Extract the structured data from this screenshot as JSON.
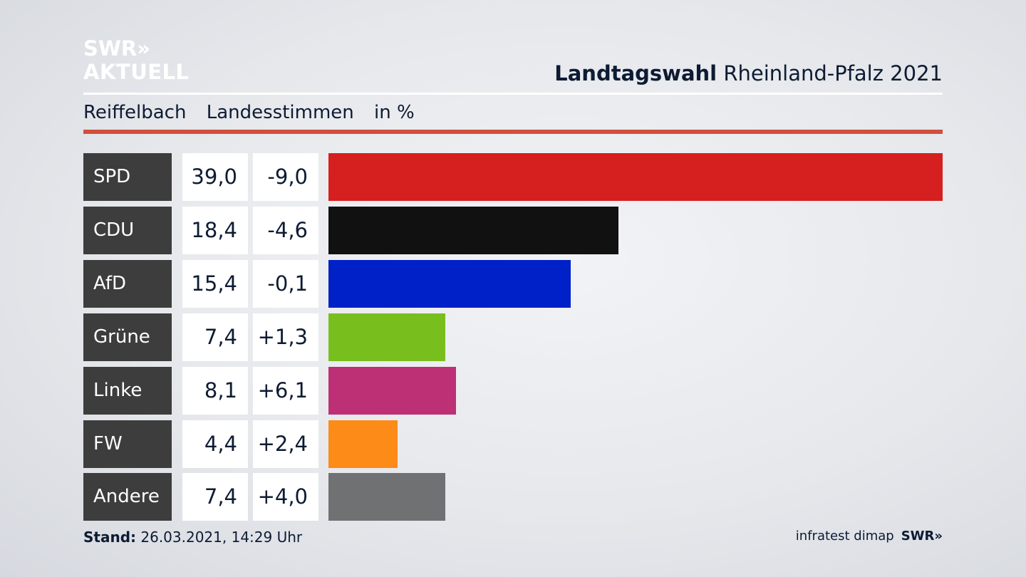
{
  "logo": {
    "line1": "SWR»",
    "line2": "AKTUELL"
  },
  "header": {
    "title_bold": "Landtagswahl",
    "title_rest": " Rheinland-Pfalz 2021"
  },
  "subheader": {
    "place": "Reiffelbach",
    "vote_type": "Landesstimmen",
    "unit": "in %"
  },
  "chart_data": {
    "type": "bar",
    "orientation": "horizontal",
    "categories": [
      "SPD",
      "CDU",
      "AfD",
      "Grüne",
      "Linke",
      "FW",
      "Andere"
    ],
    "values": [
      39.0,
      18.4,
      15.4,
      7.4,
      8.1,
      4.4,
      7.4
    ],
    "value_labels": [
      "39,0",
      "18,4",
      "15,4",
      "7,4",
      "8,1",
      "4,4",
      "7,4"
    ],
    "change_labels": [
      "-9,0",
      "-4,6",
      "-0,1",
      "+1,3",
      "+6,1",
      "+2,4",
      "+4,0"
    ],
    "colors": [
      "#d61f1f",
      "#111111",
      "#0020c8",
      "#78bf1e",
      "#bd3075",
      "#fd8b17",
      "#707173"
    ],
    "xlim": [
      0,
      39.0
    ],
    "grid": false
  },
  "footer": {
    "stand_label": "Stand:",
    "stand_value": " 26.03.2021, 14:29 Uhr",
    "source": "infratest dimap",
    "brand": "SWR»"
  }
}
